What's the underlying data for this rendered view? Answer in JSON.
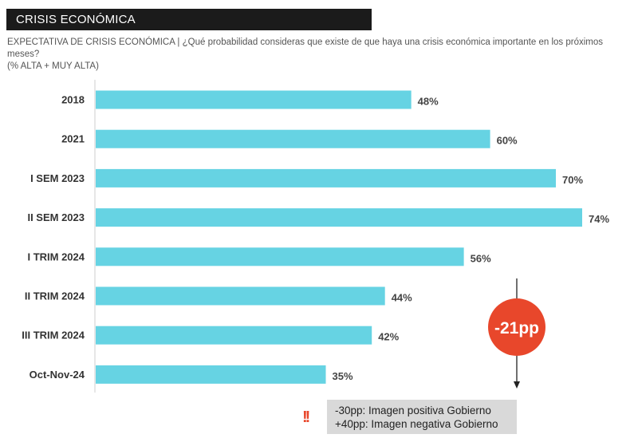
{
  "header": {
    "title": "CRISIS ECONÓMICA"
  },
  "subtitle": {
    "line1": "EXPECTATIVA DE CRISIS ECONÓMICA | ¿Qué probabilidad consideras que existe de que haya una crisis económica importante en los próximos meses?",
    "line2": "(% ALTA + MUY ALTA)"
  },
  "chart_data": {
    "type": "bar",
    "orientation": "horizontal",
    "categories": [
      "2018",
      "2021",
      "I SEM 2023",
      "II SEM 2023",
      "I TRIM 2024",
      "II TRIM 2024",
      "III TRIM 2024",
      "Oct-Nov-24"
    ],
    "values": [
      48,
      60,
      70,
      74,
      56,
      44,
      42,
      35
    ],
    "value_labels": [
      "48%",
      "60%",
      "70%",
      "74%",
      "56%",
      "44%",
      "42%",
      "35%"
    ],
    "bar_color": "#66d3e3",
    "xlim": [
      0,
      74
    ],
    "grid": false,
    "annotation": {
      "text": "-21pp",
      "color": "#e8472b"
    }
  },
  "note": {
    "icon": "double-exclamation-icon",
    "icon_text": "!!",
    "icon_color": "#e8472b",
    "lines": [
      "-30pp: Imagen positiva Gobierno",
      "+40pp: Imagen negativa Gobierno"
    ]
  }
}
